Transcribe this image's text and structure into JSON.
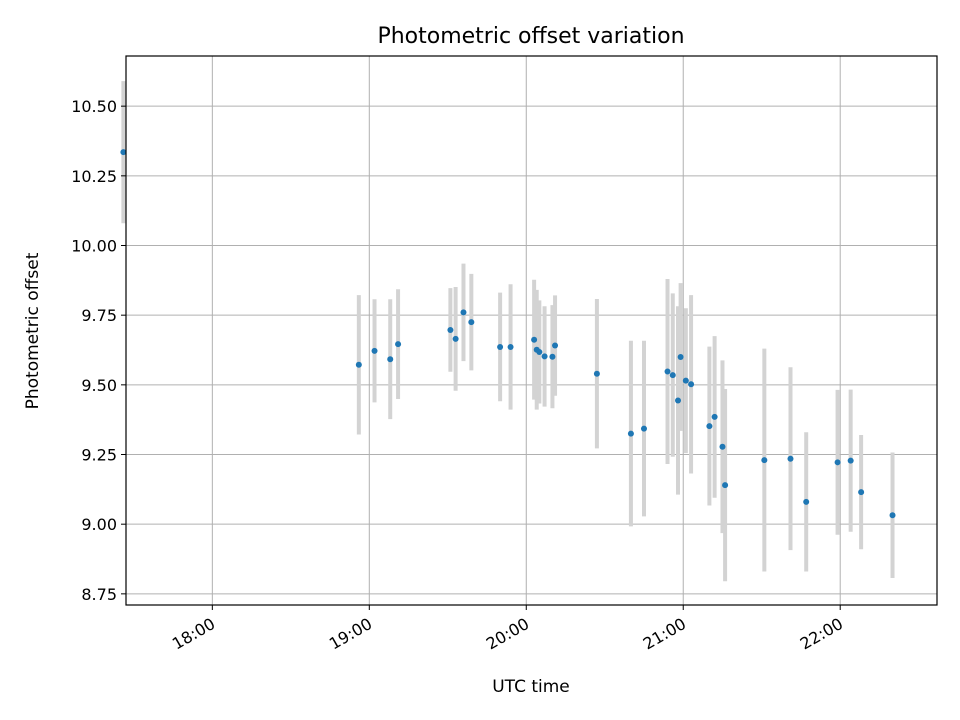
{
  "chart_data": {
    "type": "scatter",
    "title": "Photometric offset variation",
    "xlabel": "UTC time",
    "ylabel": "Photometric offset",
    "x_ticks": [
      "18:00",
      "19:00",
      "20:00",
      "21:00",
      "22:00"
    ],
    "y_ticks": [
      "8.75",
      "9.00",
      "9.25",
      "9.50",
      "9.75",
      "10.00",
      "10.25",
      "10.50"
    ],
    "xlim": [
      "17:27",
      "22:37"
    ],
    "ylim": [
      8.71,
      10.68
    ],
    "grid": true,
    "colors": {
      "point": "#1f77b4",
      "errorbar": "#d3d3d3",
      "grid": "#b0b0b0"
    },
    "points": [
      {
        "t": "17:26",
        "y": 10.335,
        "err": 0.255
      },
      {
        "t": "18:56",
        "y": 9.572,
        "err": 0.25
      },
      {
        "t": "19:02",
        "y": 9.622,
        "err": 0.185
      },
      {
        "t": "19:08",
        "y": 9.592,
        "err": 0.215
      },
      {
        "t": "19:11",
        "y": 9.646,
        "err": 0.197
      },
      {
        "t": "19:31",
        "y": 9.697,
        "err": 0.15
      },
      {
        "t": "19:33",
        "y": 9.665,
        "err": 0.186
      },
      {
        "t": "19:36",
        "y": 9.76,
        "err": 0.175
      },
      {
        "t": "19:39",
        "y": 9.725,
        "err": 0.173
      },
      {
        "t": "19:50",
        "y": 9.636,
        "err": 0.195
      },
      {
        "t": "19:54",
        "y": 9.636,
        "err": 0.225
      },
      {
        "t": "20:03",
        "y": 9.662,
        "err": 0.215
      },
      {
        "t": "20:04",
        "y": 9.626,
        "err": 0.215
      },
      {
        "t": "20:05",
        "y": 9.618,
        "err": 0.185
      },
      {
        "t": "20:07",
        "y": 9.602,
        "err": 0.18
      },
      {
        "t": "20:10",
        "y": 9.601,
        "err": 0.185
      },
      {
        "t": "20:11",
        "y": 9.641,
        "err": 0.18
      },
      {
        "t": "20:27",
        "y": 9.54,
        "err": 0.268
      },
      {
        "t": "20:40",
        "y": 9.325,
        "err": 0.333
      },
      {
        "t": "20:45",
        "y": 9.343,
        "err": 0.315
      },
      {
        "t": "20:54",
        "y": 9.548,
        "err": 0.332
      },
      {
        "t": "20:56",
        "y": 9.535,
        "err": 0.293
      },
      {
        "t": "20:58",
        "y": 9.444,
        "err": 0.338
      },
      {
        "t": "20:59",
        "y": 9.6,
        "err": 0.265
      },
      {
        "t": "21:01",
        "y": 9.515,
        "err": 0.26
      },
      {
        "t": "21:03",
        "y": 9.502,
        "err": 0.32
      },
      {
        "t": "21:10",
        "y": 9.352,
        "err": 0.285
      },
      {
        "t": "21:12",
        "y": 9.385,
        "err": 0.29
      },
      {
        "t": "21:15",
        "y": 9.278,
        "err": 0.31
      },
      {
        "t": "21:16",
        "y": 9.14,
        "err": 0.345
      },
      {
        "t": "21:31",
        "y": 9.23,
        "err": 0.4
      },
      {
        "t": "21:41",
        "y": 9.235,
        "err": 0.328
      },
      {
        "t": "21:47",
        "y": 9.08,
        "err": 0.25
      },
      {
        "t": "21:59",
        "y": 9.222,
        "err": 0.26
      },
      {
        "t": "22:04",
        "y": 9.228,
        "err": 0.255
      },
      {
        "t": "22:08",
        "y": 9.115,
        "err": 0.205
      },
      {
        "t": "22:20",
        "y": 9.032,
        "err": 0.225
      }
    ]
  }
}
